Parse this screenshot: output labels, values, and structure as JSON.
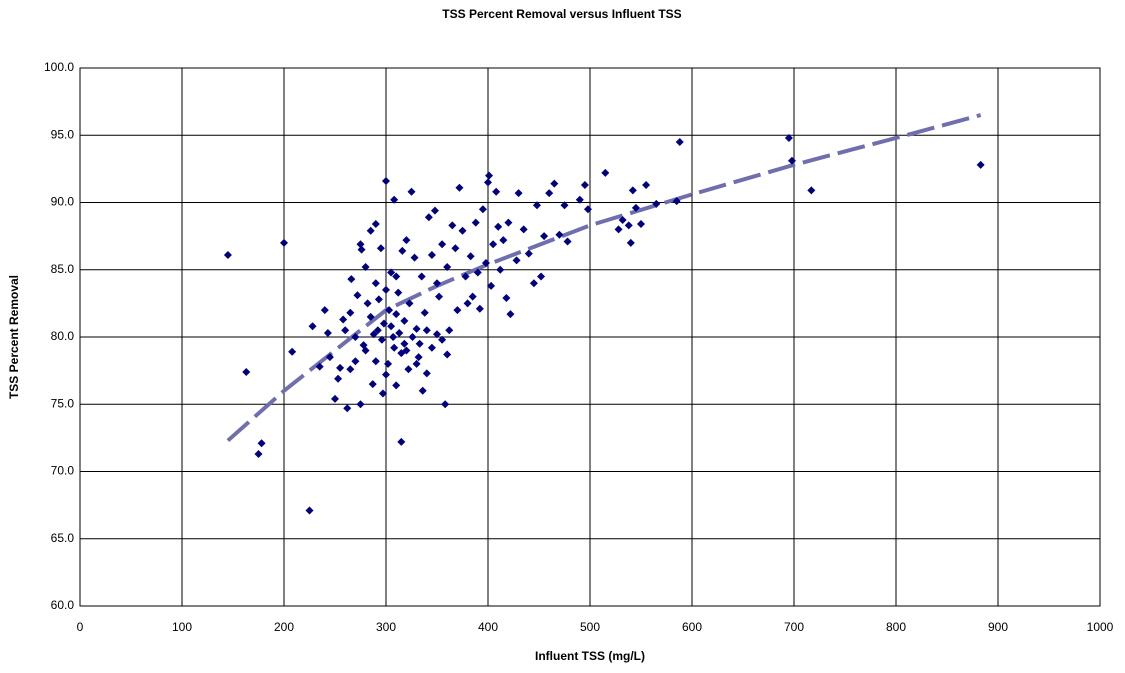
{
  "chart_data": {
    "type": "scatter",
    "title": "TSS Percent Removal versus Influent TSS",
    "x_label": "Influent TSS (mg/L)",
    "y_label": "TSS Percent Removal",
    "xlim": [
      0,
      1000
    ],
    "xticks": [
      0,
      100,
      200,
      300,
      400,
      500,
      600,
      700,
      800,
      900,
      1000
    ],
    "ylim": [
      60,
      100
    ],
    "yticks": [
      {
        "value": 60,
        "label": "60.0"
      },
      {
        "value": 65,
        "label": "65.0"
      },
      {
        "value": 70,
        "label": "70.0"
      },
      {
        "value": 75,
        "label": "75.0"
      },
      {
        "value": 80,
        "label": "80.0"
      },
      {
        "value": 85,
        "label": "85.0"
      },
      {
        "value": 90,
        "label": "90.0"
      },
      {
        "value": 95,
        "label": "95.0"
      },
      {
        "value": 100,
        "label": "100.0"
      }
    ],
    "grid": true,
    "series": [
      {
        "type": "scatter",
        "color": "#000080",
        "x": [
          145,
          163,
          175,
          178,
          200,
          208,
          225,
          228,
          235,
          240,
          243,
          245,
          250,
          253,
          255,
          258,
          262,
          265,
          266,
          270,
          272,
          275,
          276,
          278,
          280,
          282,
          285,
          287,
          290,
          292,
          295,
          297,
          300,
          302,
          303,
          305,
          307,
          308,
          310,
          312,
          315,
          316,
          318,
          320,
          322,
          325,
          328,
          330,
          332,
          335,
          338,
          340,
          342,
          345,
          348,
          350,
          352,
          355,
          358,
          360,
          362,
          365,
          368,
          370,
          372,
          375,
          378,
          380,
          383,
          385,
          388,
          390,
          392,
          395,
          398,
          400,
          401,
          403,
          405,
          408,
          410,
          412,
          415,
          418,
          420,
          422,
          428,
          430,
          435,
          440,
          445,
          448,
          452,
          455,
          460,
          465,
          470,
          475,
          478,
          490,
          495,
          498,
          515,
          528,
          532,
          538,
          540,
          542,
          545,
          550,
          555,
          565,
          585,
          588,
          695,
          698,
          717,
          883,
          280,
          285,
          288,
          290,
          293,
          296,
          298,
          300,
          305,
          308,
          310,
          313,
          315,
          318,
          320,
          323,
          326,
          330,
          333,
          336,
          340,
          345,
          350,
          355,
          360,
          270,
          275,
          265,
          260,
          300,
          310,
          290
        ],
        "values": [
          86.1,
          77.4,
          71.3,
          72.1,
          87.0,
          78.9,
          67.1,
          80.8,
          77.8,
          82.0,
          80.3,
          78.5,
          75.4,
          76.9,
          77.7,
          81.3,
          74.7,
          77.6,
          84.3,
          80.0,
          83.1,
          86.9,
          86.5,
          79.4,
          85.2,
          82.5,
          87.9,
          76.5,
          88.4,
          80.5,
          86.6,
          75.8,
          91.6,
          78.0,
          82.0,
          84.8,
          80.0,
          90.2,
          76.4,
          83.3,
          72.2,
          86.4,
          79.5,
          87.2,
          77.6,
          90.8,
          85.9,
          80.6,
          78.5,
          84.5,
          81.8,
          77.3,
          88.9,
          86.1,
          89.4,
          84.0,
          83.0,
          86.9,
          75.0,
          85.2,
          80.5,
          88.3,
          86.6,
          82.0,
          91.1,
          87.9,
          84.5,
          82.5,
          86.0,
          83.0,
          88.5,
          84.8,
          82.1,
          89.5,
          85.5,
          91.5,
          92.0,
          83.8,
          86.9,
          90.8,
          88.2,
          85.0,
          87.2,
          82.9,
          88.5,
          81.7,
          85.7,
          90.7,
          88.0,
          86.2,
          84.0,
          89.8,
          84.5,
          87.5,
          90.7,
          91.4,
          87.6,
          89.8,
          87.1,
          90.2,
          91.3,
          89.5,
          92.2,
          88.0,
          88.7,
          88.3,
          87.0,
          90.9,
          89.6,
          88.4,
          91.3,
          89.9,
          90.1,
          94.5,
          94.8,
          93.1,
          90.9,
          92.8,
          79.0,
          81.5,
          80.2,
          78.2,
          82.8,
          79.8,
          81.0,
          77.2,
          80.8,
          79.2,
          81.7,
          80.3,
          78.8,
          81.2,
          79.0,
          82.5,
          80.0,
          78.0,
          79.5,
          76.0,
          80.5,
          79.2,
          80.2,
          79.8,
          78.7,
          78.2,
          75.0,
          81.8,
          80.5,
          83.5,
          84.5,
          84.0
        ]
      },
      {
        "type": "line",
        "color": "#6f6fb0",
        "x": [
          145,
          200,
          250,
          300,
          350,
          400,
          500,
          600,
          700,
          800,
          883
        ],
        "values": [
          72.3,
          76.0,
          79.0,
          82.0,
          83.8,
          85.4,
          88.3,
          90.6,
          92.8,
          94.8,
          96.5
        ]
      }
    ]
  }
}
